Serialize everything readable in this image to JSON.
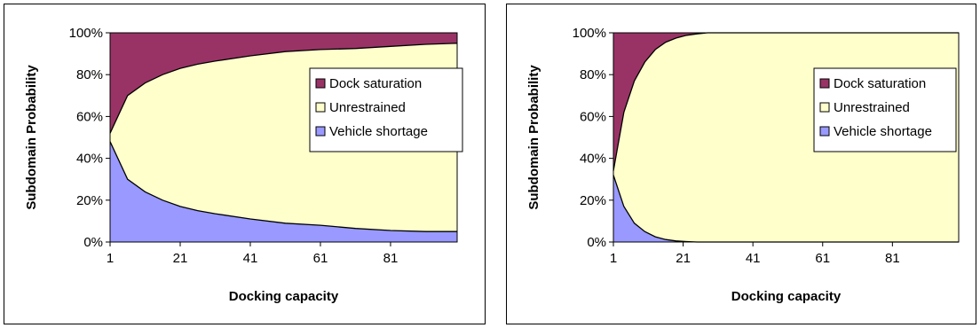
{
  "colors": {
    "dock_saturation": "#993366",
    "unrestrained": "#ffffcc",
    "vehicle_shortage": "#9999ff",
    "frame": "#000000"
  },
  "chart_data": [
    {
      "type": "area",
      "stacked": true,
      "normalized": true,
      "xlabel": "Docking capacity",
      "ylabel": "Subdomain Probability",
      "xlim": [
        1,
        100
      ],
      "ylim": [
        0,
        100
      ],
      "xticks": [
        "1",
        "21",
        "41",
        "61",
        "81"
      ],
      "xtick_values": [
        1,
        21,
        41,
        61,
        81
      ],
      "yticks": [
        "0%",
        "20%",
        "40%",
        "60%",
        "80%",
        "100%"
      ],
      "ytick_values": [
        0,
        20,
        40,
        60,
        80,
        100
      ],
      "legend_position": "right",
      "x": [
        1,
        6,
        11,
        16,
        21,
        26,
        31,
        41,
        51,
        61,
        71,
        81,
        91,
        100
      ],
      "series": [
        {
          "name": "Vehicle shortage",
          "values": [
            48,
            30,
            24,
            20,
            17,
            15,
            13.5,
            11,
            9,
            8,
            6.5,
            5.5,
            5,
            5
          ]
        },
        {
          "name": "Unrestrained",
          "values": [
            4,
            40,
            52,
            60,
            66,
            70,
            73,
            78,
            82,
            84,
            86,
            88,
            89.5,
            90
          ]
        },
        {
          "name": "Dock saturation",
          "values": [
            48,
            30,
            24,
            20,
            17,
            15,
            13.5,
            11,
            9,
            8,
            7.5,
            6.5,
            5.5,
            5
          ]
        }
      ]
    },
    {
      "type": "area",
      "stacked": true,
      "normalized": true,
      "xlabel": "Docking capacity",
      "ylabel": "Subdomain Probability",
      "xlim": [
        1,
        100
      ],
      "ylim": [
        0,
        100
      ],
      "xticks": [
        "1",
        "21",
        "41",
        "61",
        "81"
      ],
      "xtick_values": [
        1,
        21,
        41,
        61,
        81
      ],
      "yticks": [
        "0%",
        "20%",
        "40%",
        "60%",
        "80%",
        "100%"
      ],
      "ytick_values": [
        0,
        20,
        40,
        60,
        80,
        100
      ],
      "legend_position": "right",
      "x": [
        1,
        4,
        7,
        10,
        13,
        16,
        19,
        22,
        25,
        28,
        100
      ],
      "series": [
        {
          "name": "Vehicle shortage",
          "values": [
            32,
            17,
            9,
            5,
            2.5,
            1.2,
            0.5,
            0.2,
            0,
            0,
            0
          ]
        },
        {
          "name": "Unrestrained",
          "values": [
            2,
            45,
            68,
            81,
            89.5,
            94.3,
            97,
            98.6,
            99.5,
            100,
            100
          ]
        },
        {
          "name": "Dock saturation",
          "values": [
            66,
            38,
            23,
            14,
            8,
            4.5,
            2.5,
            1.2,
            0.5,
            0,
            0
          ]
        }
      ]
    }
  ]
}
